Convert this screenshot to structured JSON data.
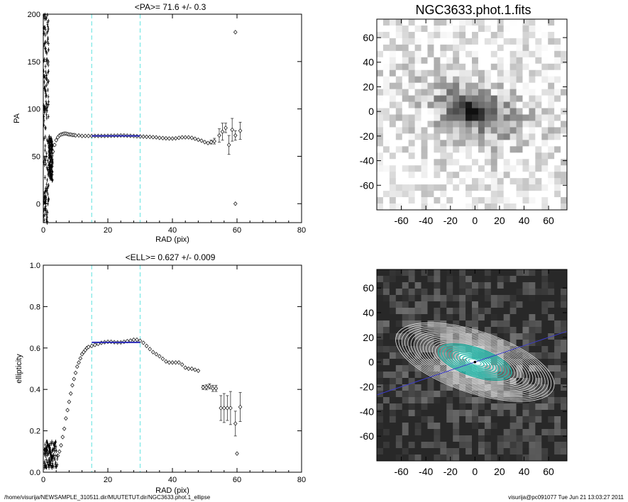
{
  "chart_data": [
    {
      "type": "scatter",
      "panel": "pa-profile",
      "title": "<PA>=  71.6 +/-   0.3",
      "xlabel": "RAD (pix)",
      "ylabel": "PA",
      "xlim": [
        0,
        80
      ],
      "ylim": [
        -20,
        200
      ],
      "xticks": [
        0,
        20,
        40,
        60,
        80
      ],
      "yticks": [
        0,
        50,
        100,
        150,
        200
      ],
      "vlines": [
        15,
        30
      ],
      "fit_range": [
        15,
        30
      ],
      "fit_value": 71.6,
      "points": [
        {
          "x": 3.0,
          "y": 55,
          "err": 0
        },
        {
          "x": 3.5,
          "y": 62,
          "err": 0
        },
        {
          "x": 4.0,
          "y": 67,
          "err": 0
        },
        {
          "x": 4.5,
          "y": 70,
          "err": 0
        },
        {
          "x": 5.0,
          "y": 72,
          "err": 0
        },
        {
          "x": 5.5,
          "y": 73,
          "err": 0
        },
        {
          "x": 6.0,
          "y": 73.5,
          "err": 0
        },
        {
          "x": 6.5,
          "y": 74,
          "err": 0
        },
        {
          "x": 7.0,
          "y": 74,
          "err": 0
        },
        {
          "x": 7.5,
          "y": 73.5,
          "err": 0
        },
        {
          "x": 8.0,
          "y": 73,
          "err": 0
        },
        {
          "x": 8.5,
          "y": 73,
          "err": 0
        },
        {
          "x": 9.0,
          "y": 72.5,
          "err": 0
        },
        {
          "x": 9.5,
          "y": 72.5,
          "err": 0
        },
        {
          "x": 10.0,
          "y": 72,
          "err": 0
        },
        {
          "x": 11.0,
          "y": 72,
          "err": 0
        },
        {
          "x": 12.0,
          "y": 71.5,
          "err": 0
        },
        {
          "x": 13.0,
          "y": 71.5,
          "err": 0
        },
        {
          "x": 14.0,
          "y": 71.5,
          "err": 0
        },
        {
          "x": 15.0,
          "y": 71.5,
          "err": 0
        },
        {
          "x": 16.0,
          "y": 71.5,
          "err": 0
        },
        {
          "x": 17.0,
          "y": 71.5,
          "err": 0
        },
        {
          "x": 18.0,
          "y": 71.5,
          "err": 0
        },
        {
          "x": 19.0,
          "y": 71.5,
          "err": 0
        },
        {
          "x": 20.0,
          "y": 71.6,
          "err": 0
        },
        {
          "x": 21.0,
          "y": 71.7,
          "err": 0
        },
        {
          "x": 22.0,
          "y": 71.8,
          "err": 0
        },
        {
          "x": 23.0,
          "y": 71.9,
          "err": 0
        },
        {
          "x": 24.0,
          "y": 72,
          "err": 0
        },
        {
          "x": 25.0,
          "y": 72,
          "err": 0
        },
        {
          "x": 26.0,
          "y": 71.8,
          "err": 0
        },
        {
          "x": 27.0,
          "y": 71.6,
          "err": 0
        },
        {
          "x": 28.0,
          "y": 71.4,
          "err": 0
        },
        {
          "x": 29.0,
          "y": 71.2,
          "err": 0
        },
        {
          "x": 30.0,
          "y": 71,
          "err": 0
        },
        {
          "x": 31.0,
          "y": 70.8,
          "err": 0
        },
        {
          "x": 32.0,
          "y": 70.6,
          "err": 0
        },
        {
          "x": 33.0,
          "y": 70.5,
          "err": 0
        },
        {
          "x": 34.0,
          "y": 70.2,
          "err": 0
        },
        {
          "x": 35.0,
          "y": 70,
          "err": 0
        },
        {
          "x": 36.0,
          "y": 69.5,
          "err": 0
        },
        {
          "x": 37.0,
          "y": 69.2,
          "err": 0
        },
        {
          "x": 38.0,
          "y": 69,
          "err": 0
        },
        {
          "x": 39.0,
          "y": 68.8,
          "err": 0
        },
        {
          "x": 40.0,
          "y": 68.8,
          "err": 0
        },
        {
          "x": 41.0,
          "y": 69,
          "err": 0
        },
        {
          "x": 42.0,
          "y": 69.5,
          "err": 0
        },
        {
          "x": 43.0,
          "y": 70,
          "err": 0
        },
        {
          "x": 44.0,
          "y": 70,
          "err": 0
        },
        {
          "x": 45.0,
          "y": 70,
          "err": 0
        },
        {
          "x": 46.0,
          "y": 69.5,
          "err": 0
        },
        {
          "x": 47.0,
          "y": 68.5,
          "err": 0
        },
        {
          "x": 48.0,
          "y": 67.5,
          "err": 0
        },
        {
          "x": 49.0,
          "y": 66.5,
          "err": 0
        },
        {
          "x": 50.0,
          "y": 65,
          "err": 0
        },
        {
          "x": 51.0,
          "y": 64,
          "err": 0
        },
        {
          "x": 52.0,
          "y": 65,
          "err": 2
        },
        {
          "x": 53.0,
          "y": 66,
          "err": 3
        },
        {
          "x": 54.5,
          "y": 72,
          "err": 7
        },
        {
          "x": 55.5,
          "y": 76,
          "err": 9
        },
        {
          "x": 56.5,
          "y": 80,
          "err": 5
        },
        {
          "x": 57.5,
          "y": 62,
          "err": 10
        },
        {
          "x": 58.5,
          "y": 78,
          "err": 12
        },
        {
          "x": 59.5,
          "y": 72,
          "err": 5
        },
        {
          "x": 61.0,
          "y": 77,
          "err": 9
        },
        {
          "x": 59.5,
          "y": 181,
          "err": 0
        },
        {
          "x": 59.5,
          "y": 0,
          "err": 0
        }
      ]
    },
    {
      "type": "scatter",
      "panel": "ellipticity-profile",
      "title": "<ELL>= 0.627 +/-   0.009",
      "xlabel": "RAD (pix)",
      "ylabel": "ellipticity",
      "xlim": [
        0,
        80
      ],
      "ylim": [
        0,
        1
      ],
      "xticks": [
        0,
        20,
        40,
        60,
        80
      ],
      "yticks": [
        0.0,
        0.2,
        0.4,
        0.6,
        0.8,
        1.0
      ],
      "vlines": [
        15,
        30
      ],
      "fit_range": [
        15,
        30
      ],
      "fit_value": 0.627,
      "points": [
        {
          "x": 4.5,
          "y": 0.08,
          "err": 0
        },
        {
          "x": 5.0,
          "y": 0.1,
          "err": 0
        },
        {
          "x": 5.5,
          "y": 0.13,
          "err": 0
        },
        {
          "x": 6.0,
          "y": 0.17,
          "err": 0
        },
        {
          "x": 6.5,
          "y": 0.21,
          "err": 0
        },
        {
          "x": 7.0,
          "y": 0.26,
          "err": 0
        },
        {
          "x": 7.5,
          "y": 0.3,
          "err": 0
        },
        {
          "x": 8.0,
          "y": 0.34,
          "err": 0
        },
        {
          "x": 8.5,
          "y": 0.38,
          "err": 0
        },
        {
          "x": 9.0,
          "y": 0.42,
          "err": 0
        },
        {
          "x": 9.5,
          "y": 0.45,
          "err": 0
        },
        {
          "x": 10.0,
          "y": 0.48,
          "err": 0
        },
        {
          "x": 10.5,
          "y": 0.51,
          "err": 0
        },
        {
          "x": 11.0,
          "y": 0.53,
          "err": 0
        },
        {
          "x": 11.5,
          "y": 0.55,
          "err": 0
        },
        {
          "x": 12.0,
          "y": 0.57,
          "err": 0
        },
        {
          "x": 12.5,
          "y": 0.58,
          "err": 0
        },
        {
          "x": 13.0,
          "y": 0.59,
          "err": 0
        },
        {
          "x": 13.5,
          "y": 0.6,
          "err": 0
        },
        {
          "x": 14.0,
          "y": 0.605,
          "err": 0
        },
        {
          "x": 15.0,
          "y": 0.61,
          "err": 0
        },
        {
          "x": 16.0,
          "y": 0.615,
          "err": 0
        },
        {
          "x": 17.0,
          "y": 0.62,
          "err": 0
        },
        {
          "x": 18.0,
          "y": 0.625,
          "err": 0
        },
        {
          "x": 19.0,
          "y": 0.628,
          "err": 0
        },
        {
          "x": 20.0,
          "y": 0.63,
          "err": 0
        },
        {
          "x": 21.0,
          "y": 0.63,
          "err": 0
        },
        {
          "x": 22.0,
          "y": 0.628,
          "err": 0
        },
        {
          "x": 23.0,
          "y": 0.627,
          "err": 0
        },
        {
          "x": 24.0,
          "y": 0.627,
          "err": 0
        },
        {
          "x": 25.0,
          "y": 0.63,
          "err": 0
        },
        {
          "x": 26.0,
          "y": 0.633,
          "err": 0
        },
        {
          "x": 27.0,
          "y": 0.636,
          "err": 0
        },
        {
          "x": 28.0,
          "y": 0.64,
          "err": 0
        },
        {
          "x": 29.0,
          "y": 0.64,
          "err": 0
        },
        {
          "x": 30.0,
          "y": 0.635,
          "err": 0
        },
        {
          "x": 31.0,
          "y": 0.625,
          "err": 0
        },
        {
          "x": 32.0,
          "y": 0.61,
          "err": 0
        },
        {
          "x": 33.0,
          "y": 0.595,
          "err": 0
        },
        {
          "x": 34.0,
          "y": 0.58,
          "err": 0
        },
        {
          "x": 35.0,
          "y": 0.57,
          "err": 0
        },
        {
          "x": 36.0,
          "y": 0.56,
          "err": 0
        },
        {
          "x": 37.0,
          "y": 0.548,
          "err": 0
        },
        {
          "x": 38.0,
          "y": 0.535,
          "err": 0
        },
        {
          "x": 39.0,
          "y": 0.53,
          "err": 0
        },
        {
          "x": 40.0,
          "y": 0.53,
          "err": 0
        },
        {
          "x": 41.0,
          "y": 0.53,
          "err": 0
        },
        {
          "x": 42.0,
          "y": 0.53,
          "err": 0
        },
        {
          "x": 43.0,
          "y": 0.52,
          "err": 0
        },
        {
          "x": 44.0,
          "y": 0.505,
          "err": 0
        },
        {
          "x": 45.0,
          "y": 0.5,
          "err": 0
        },
        {
          "x": 46.0,
          "y": 0.5,
          "err": 0
        },
        {
          "x": 47.0,
          "y": 0.495,
          "err": 0
        },
        {
          "x": 48.0,
          "y": 0.49,
          "err": 0
        },
        {
          "x": 49.5,
          "y": 0.41,
          "err": 0.01
        },
        {
          "x": 50.5,
          "y": 0.41,
          "err": 0.012
        },
        {
          "x": 51.5,
          "y": 0.415,
          "err": 0.012
        },
        {
          "x": 52.5,
          "y": 0.405,
          "err": 0.015
        },
        {
          "x": 53.5,
          "y": 0.405,
          "err": 0.015
        },
        {
          "x": 55.0,
          "y": 0.31,
          "err": 0.06
        },
        {
          "x": 56.0,
          "y": 0.31,
          "err": 0.07
        },
        {
          "x": 57.0,
          "y": 0.31,
          "err": 0.06
        },
        {
          "x": 58.0,
          "y": 0.31,
          "err": 0.08
        },
        {
          "x": 59.5,
          "y": 0.235,
          "err": 0.06
        },
        {
          "x": 61.0,
          "y": 0.315,
          "err": 0.07
        },
        {
          "x": 60.0,
          "y": 0.09,
          "err": 0
        }
      ]
    },
    {
      "type": "heatmap",
      "panel": "galaxy-image",
      "title": "NGC3633.phot.1.fits",
      "xlim": [
        -80,
        75
      ],
      "ylim": [
        -80,
        75
      ],
      "xticks": [
        -60,
        -40,
        -20,
        0,
        20,
        40,
        60
      ],
      "yticks": [
        -60,
        -40,
        -20,
        0,
        20,
        40,
        60
      ],
      "colormap": "grayscale-inverted"
    },
    {
      "type": "heatmap",
      "panel": "isophote-overlay",
      "xlim": [
        -80,
        75
      ],
      "ylim": [
        -80,
        75
      ],
      "xticks": [
        -60,
        -40,
        -20,
        0,
        20,
        40,
        60
      ],
      "yticks": [
        -60,
        -40,
        -20,
        0,
        20,
        40,
        60
      ],
      "colormap": "grayscale",
      "isophote_pa": 71.6,
      "isophote_ell": 0.627,
      "major_axis_color": "#3c3cc8"
    }
  ],
  "footer": {
    "left": "/home/visurija/NEWSAMPLE_310511.dir/MUUTETUT.dir/NGC3633.phot.1_ellipse",
    "right": "visurija@pc091077  Tue Jun 21 13:03:27 2011"
  },
  "colors": {
    "vline": "#7fe8e6",
    "fit": "#2a2ab8",
    "isophote_inner": "#27b6a8",
    "isophote_outer": "#e6e6e6"
  }
}
